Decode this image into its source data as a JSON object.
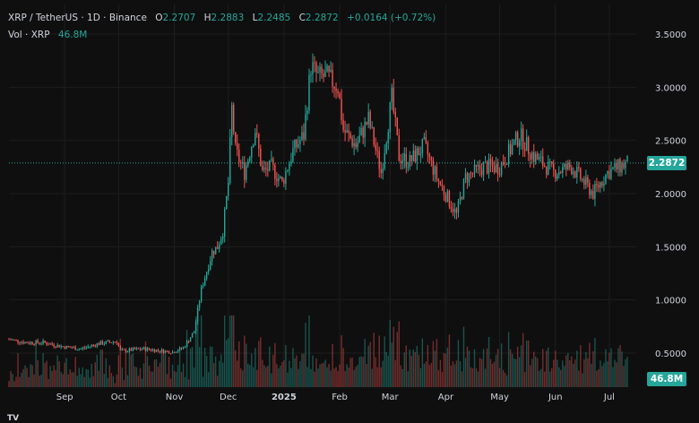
{
  "legend": {
    "symbol": "XRP / TetherUS · 1D · Binance",
    "open_label": "O",
    "open": "2.2707",
    "high_label": "H",
    "high": "2.2883",
    "low_label": "L",
    "low": "2.2485",
    "close_label": "C",
    "close": "2.2872",
    "change": "+0.0164 (+0.72%)",
    "volume_label": "Vol · XRP",
    "volume": "46.8M"
  },
  "price_tag": "2.2872",
  "volume_tag": "46.8M",
  "colors": {
    "up": "#26a69a",
    "down": "#ef5350",
    "background": "#0f0f0f",
    "grid": "#1e1e1e"
  },
  "chart_data": {
    "type": "candlestick",
    "title": "XRP / TetherUS · 1D · Binance",
    "ylim": [
      0.3,
      3.6
    ],
    "y_ticks": [
      "3.5000",
      "3.0000",
      "2.5000",
      "2.0000",
      "1.5000",
      "1.0000",
      "0.5000"
    ],
    "y_tick_values": [
      3.5,
      3.0,
      2.5,
      2.0,
      1.5,
      1.0,
      0.5
    ],
    "x_ticks": [
      "Sep",
      "Oct",
      "Nov",
      "Dec",
      "2025",
      "Feb",
      "Mar",
      "Apr",
      "May",
      "Jun",
      "Jul"
    ],
    "x_tick_dates": [
      "2024-09-01",
      "2024-10-01",
      "2024-11-01",
      "2024-12-01",
      "2025-01-01",
      "2025-02-01",
      "2025-03-01",
      "2025-04-01",
      "2025-05-01",
      "2025-06-01",
      "2025-07-01"
    ],
    "x_range": [
      "2024-08-01",
      "2025-07-11"
    ],
    "last_price": 2.2872,
    "grid": true,
    "closes": [
      [
        "2024-08-01",
        0.63
      ],
      [
        "2024-08-10",
        0.6
      ],
      [
        "2024-08-20",
        0.6
      ],
      [
        "2024-08-31",
        0.56
      ],
      [
        "2024-09-10",
        0.54
      ],
      [
        "2024-09-20",
        0.59
      ],
      [
        "2024-09-30",
        0.61
      ],
      [
        "2024-10-02",
        0.52
      ],
      [
        "2024-10-15",
        0.54
      ],
      [
        "2024-10-31",
        0.51
      ],
      [
        "2024-11-06",
        0.55
      ],
      [
        "2024-11-12",
        0.7
      ],
      [
        "2024-11-16",
        1.1
      ],
      [
        "2024-11-22",
        1.45
      ],
      [
        "2024-11-25",
        1.5
      ],
      [
        "2024-11-28",
        1.65
      ],
      [
        "2024-12-01",
        2.1
      ],
      [
        "2024-12-03",
        2.8
      ],
      [
        "2024-12-05",
        2.4
      ],
      [
        "2024-12-10",
        2.2
      ],
      [
        "2024-12-16",
        2.6
      ],
      [
        "2024-12-20",
        2.2
      ],
      [
        "2024-12-25",
        2.25
      ],
      [
        "2024-12-31",
        2.1
      ],
      [
        "2025-01-06",
        2.4
      ],
      [
        "2025-01-12",
        2.55
      ],
      [
        "2025-01-16",
        3.2
      ],
      [
        "2025-01-20",
        3.1
      ],
      [
        "2025-01-25",
        3.1
      ],
      [
        "2025-01-31",
        3.0
      ],
      [
        "2025-02-03",
        2.6
      ],
      [
        "2025-02-10",
        2.45
      ],
      [
        "2025-02-17",
        2.7
      ],
      [
        "2025-02-24",
        2.2
      ],
      [
        "2025-03-02",
        2.9
      ],
      [
        "2025-03-06",
        2.35
      ],
      [
        "2025-03-12",
        2.3
      ],
      [
        "2025-03-20",
        2.45
      ],
      [
        "2025-03-27",
        2.15
      ],
      [
        "2025-04-07",
        1.8
      ],
      [
        "2025-04-12",
        2.15
      ],
      [
        "2025-04-22",
        2.25
      ],
      [
        "2025-05-01",
        2.25
      ],
      [
        "2025-05-12",
        2.55
      ],
      [
        "2025-05-20",
        2.35
      ],
      [
        "2025-05-31",
        2.2
      ],
      [
        "2025-06-10",
        2.25
      ],
      [
        "2025-06-22",
        2.0
      ],
      [
        "2025-06-30",
        2.2
      ],
      [
        "2025-07-11",
        2.2872
      ]
    ]
  },
  "volume_data": {
    "type": "bar",
    "unit": "XRP",
    "last": "46.8M"
  }
}
